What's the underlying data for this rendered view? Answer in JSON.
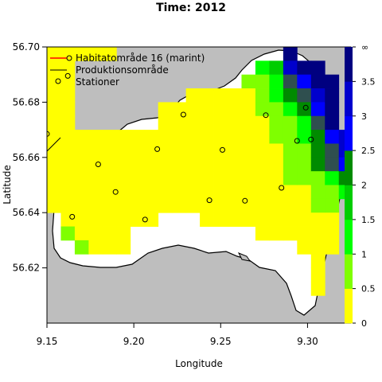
{
  "title": "Time: 2012",
  "xlabel": "Longitude",
  "ylabel": "Latitude",
  "x_ticks": [
    "9.15",
    "9.20",
    "9.25",
    "9.30"
  ],
  "y_ticks": [
    "56.62",
    "56.64",
    "56.66",
    "56.68",
    "56.70"
  ],
  "legend": {
    "habitat": "Habitatområde 16 (marint)",
    "production": "Produktionsområde",
    "stations": "Stationer"
  },
  "colors": {
    "land": "#bebebe",
    "water": "#ffffff",
    "habitat_line": "#ff0000",
    "production_line": "#000000",
    "station": "#000000"
  },
  "colorbar": {
    "labels": [
      "0",
      "0.5",
      "1",
      "1.5",
      "2",
      "2.5",
      "3",
      "3.5",
      "∞"
    ],
    "colors": [
      "#ffff00",
      "#7fff00",
      "#00ff00",
      "#00cd00",
      "#008b00",
      "#2f4f4f",
      "#0000ff",
      "#0000cd",
      "#000080"
    ]
  },
  "chart_data": {
    "type": "heatmap",
    "title": "Time: 2012",
    "xlabel": "Longitude",
    "ylabel": "Latitude",
    "xlim": [
      9.15,
      9.325
    ],
    "ylim": [
      56.6,
      56.7
    ],
    "cell_size": [
      0.008,
      0.005
    ],
    "value_classes": [
      "0-0.5",
      "0.5-1",
      "1-1.5",
      "1.5-2",
      "2-2.5",
      "2.5-3",
      "3-3.5",
      "3.5-∞"
    ],
    "cells": [
      [
        9.15,
        56.695,
        0
      ],
      [
        9.158,
        56.695,
        0
      ],
      [
        9.166,
        56.695,
        0
      ],
      [
        9.174,
        56.695,
        0
      ],
      [
        9.182,
        56.695,
        0
      ],
      [
        9.15,
        56.69,
        0
      ],
      [
        9.158,
        56.69,
        0
      ],
      [
        9.15,
        56.685,
        0
      ],
      [
        9.158,
        56.685,
        0
      ],
      [
        9.15,
        56.68,
        0
      ],
      [
        9.158,
        56.68,
        0
      ],
      [
        9.15,
        56.675,
        0
      ],
      [
        9.158,
        56.675,
        0
      ],
      [
        9.15,
        56.67,
        0
      ],
      [
        9.158,
        56.67,
        0
      ],
      [
        9.15,
        56.665,
        0
      ],
      [
        9.158,
        56.665,
        0
      ],
      [
        9.166,
        56.665,
        0
      ],
      [
        9.174,
        56.665,
        0
      ],
      [
        9.182,
        56.665,
        0
      ],
      [
        9.19,
        56.665,
        0
      ],
      [
        9.15,
        56.66,
        0
      ],
      [
        9.158,
        56.66,
        0
      ],
      [
        9.166,
        56.66,
        0
      ],
      [
        9.174,
        56.66,
        0
      ],
      [
        9.182,
        56.66,
        0
      ],
      [
        9.19,
        56.66,
        0
      ],
      [
        9.15,
        56.655,
        0
      ],
      [
        9.158,
        56.655,
        0
      ],
      [
        9.166,
        56.655,
        0
      ],
      [
        9.174,
        56.655,
        0
      ],
      [
        9.182,
        56.655,
        0
      ],
      [
        9.19,
        56.655,
        0
      ],
      [
        9.15,
        56.65,
        0
      ],
      [
        9.158,
        56.65,
        0
      ],
      [
        9.166,
        56.65,
        0
      ],
      [
        9.174,
        56.65,
        0
      ],
      [
        9.182,
        56.65,
        0
      ],
      [
        9.19,
        56.65,
        0
      ],
      [
        9.15,
        56.645,
        0
      ],
      [
        9.158,
        56.645,
        0
      ],
      [
        9.166,
        56.645,
        0
      ],
      [
        9.174,
        56.645,
        0
      ],
      [
        9.182,
        56.645,
        0
      ],
      [
        9.19,
        56.645,
        0
      ],
      [
        9.15,
        56.64,
        0
      ],
      [
        9.158,
        56.64,
        0
      ],
      [
        9.166,
        56.64,
        0
      ],
      [
        9.174,
        56.64,
        0
      ],
      [
        9.182,
        56.64,
        0
      ],
      [
        9.19,
        56.64,
        0
      ],
      [
        9.158,
        56.635,
        0
      ],
      [
        9.166,
        56.635,
        0
      ],
      [
        9.174,
        56.635,
        0
      ],
      [
        9.182,
        56.635,
        0
      ],
      [
        9.19,
        56.635,
        0
      ],
      [
        9.158,
        56.63,
        1
      ],
      [
        9.166,
        56.63,
        0
      ],
      [
        9.174,
        56.63,
        0
      ],
      [
        9.182,
        56.63,
        0
      ],
      [
        9.19,
        56.63,
        0
      ],
      [
        9.166,
        56.625,
        1
      ],
      [
        9.174,
        56.625,
        0
      ],
      [
        9.182,
        56.625,
        0
      ],
      [
        9.19,
        56.625,
        0
      ],
      [
        9.198,
        56.665,
        0
      ],
      [
        9.198,
        56.66,
        0
      ],
      [
        9.198,
        56.655,
        0
      ],
      [
        9.198,
        56.65,
        0
      ],
      [
        9.198,
        56.645,
        0
      ],
      [
        9.198,
        56.64,
        0
      ],
      [
        9.198,
        56.635,
        0
      ],
      [
        9.206,
        56.665,
        0
      ],
      [
        9.206,
        56.66,
        0
      ],
      [
        9.206,
        56.655,
        0
      ],
      [
        9.206,
        56.65,
        0
      ],
      [
        9.206,
        56.645,
        0
      ],
      [
        9.206,
        56.64,
        0
      ],
      [
        9.206,
        56.635,
        0
      ],
      [
        9.214,
        56.675,
        0
      ],
      [
        9.214,
        56.67,
        0
      ],
      [
        9.214,
        56.665,
        0
      ],
      [
        9.214,
        56.66,
        0
      ],
      [
        9.214,
        56.655,
        0
      ],
      [
        9.214,
        56.65,
        0
      ],
      [
        9.214,
        56.645,
        0
      ],
      [
        9.214,
        56.64,
        0
      ],
      [
        9.222,
        56.675,
        0
      ],
      [
        9.222,
        56.67,
        0
      ],
      [
        9.222,
        56.665,
        0
      ],
      [
        9.222,
        56.66,
        0
      ],
      [
        9.222,
        56.655,
        0
      ],
      [
        9.222,
        56.65,
        0
      ],
      [
        9.222,
        56.645,
        0
      ],
      [
        9.222,
        56.64,
        0
      ],
      [
        9.23,
        56.68,
        0
      ],
      [
        9.23,
        56.675,
        0
      ],
      [
        9.23,
        56.67,
        0
      ],
      [
        9.23,
        56.665,
        0
      ],
      [
        9.23,
        56.66,
        0
      ],
      [
        9.23,
        56.655,
        0
      ],
      [
        9.23,
        56.65,
        0
      ],
      [
        9.23,
        56.645,
        0
      ],
      [
        9.23,
        56.64,
        0
      ],
      [
        9.238,
        56.68,
        0
      ],
      [
        9.238,
        56.675,
        0
      ],
      [
        9.238,
        56.67,
        0
      ],
      [
        9.238,
        56.665,
        0
      ],
      [
        9.238,
        56.66,
        0
      ],
      [
        9.238,
        56.655,
        0
      ],
      [
        9.238,
        56.65,
        0
      ],
      [
        9.238,
        56.645,
        0
      ],
      [
        9.238,
        56.64,
        0
      ],
      [
        9.238,
        56.635,
        0
      ],
      [
        9.246,
        56.68,
        0
      ],
      [
        9.246,
        56.675,
        0
      ],
      [
        9.246,
        56.67,
        0
      ],
      [
        9.246,
        56.665,
        0
      ],
      [
        9.246,
        56.66,
        0
      ],
      [
        9.246,
        56.655,
        0
      ],
      [
        9.246,
        56.65,
        0
      ],
      [
        9.246,
        56.645,
        0
      ],
      [
        9.246,
        56.64,
        0
      ],
      [
        9.246,
        56.635,
        0
      ],
      [
        9.254,
        56.68,
        0
      ],
      [
        9.254,
        56.675,
        0
      ],
      [
        9.254,
        56.67,
        0
      ],
      [
        9.254,
        56.665,
        0
      ],
      [
        9.254,
        56.66,
        0
      ],
      [
        9.254,
        56.655,
        0
      ],
      [
        9.254,
        56.65,
        0
      ],
      [
        9.254,
        56.645,
        0
      ],
      [
        9.254,
        56.64,
        0
      ],
      [
        9.254,
        56.635,
        0
      ],
      [
        9.262,
        56.685,
        1
      ],
      [
        9.262,
        56.68,
        0
      ],
      [
        9.262,
        56.675,
        0
      ],
      [
        9.262,
        56.67,
        0
      ],
      [
        9.262,
        56.665,
        0
      ],
      [
        9.262,
        56.66,
        0
      ],
      [
        9.262,
        56.655,
        0
      ],
      [
        9.262,
        56.65,
        0
      ],
      [
        9.262,
        56.645,
        0
      ],
      [
        9.262,
        56.64,
        0
      ],
      [
        9.262,
        56.635,
        0
      ],
      [
        9.27,
        56.69,
        2
      ],
      [
        9.27,
        56.685,
        1
      ],
      [
        9.27,
        56.68,
        1
      ],
      [
        9.27,
        56.675,
        1
      ],
      [
        9.27,
        56.67,
        0
      ],
      [
        9.27,
        56.665,
        0
      ],
      [
        9.27,
        56.66,
        0
      ],
      [
        9.27,
        56.655,
        0
      ],
      [
        9.27,
        56.65,
        0
      ],
      [
        9.27,
        56.645,
        0
      ],
      [
        9.27,
        56.64,
        0
      ],
      [
        9.27,
        56.635,
        0
      ],
      [
        9.27,
        56.63,
        0
      ],
      [
        9.278,
        56.69,
        3
      ],
      [
        9.278,
        56.685,
        2
      ],
      [
        9.278,
        56.68,
        2
      ],
      [
        9.278,
        56.675,
        1
      ],
      [
        9.278,
        56.67,
        1
      ],
      [
        9.278,
        56.665,
        1
      ],
      [
        9.278,
        56.66,
        0
      ],
      [
        9.278,
        56.655,
        0
      ],
      [
        9.278,
        56.65,
        0
      ],
      [
        9.278,
        56.645,
        0
      ],
      [
        9.278,
        56.64,
        0
      ],
      [
        9.278,
        56.635,
        0
      ],
      [
        9.278,
        56.63,
        0
      ],
      [
        9.286,
        56.695,
        8
      ],
      [
        9.286,
        56.69,
        7
      ],
      [
        9.286,
        56.685,
        5
      ],
      [
        9.286,
        56.68,
        4
      ],
      [
        9.286,
        56.675,
        2
      ],
      [
        9.286,
        56.67,
        1
      ],
      [
        9.286,
        56.665,
        1
      ],
      [
        9.286,
        56.66,
        1
      ],
      [
        9.286,
        56.655,
        1
      ],
      [
        9.286,
        56.65,
        1
      ],
      [
        9.286,
        56.645,
        0
      ],
      [
        9.286,
        56.64,
        0
      ],
      [
        9.286,
        56.635,
        0
      ],
      [
        9.286,
        56.63,
        0
      ],
      [
        9.294,
        56.69,
        8
      ],
      [
        9.294,
        56.685,
        6
      ],
      [
        9.294,
        56.68,
        5
      ],
      [
        9.294,
        56.675,
        4
      ],
      [
        9.294,
        56.67,
        2
      ],
      [
        9.294,
        56.665,
        2
      ],
      [
        9.294,
        56.66,
        1
      ],
      [
        9.294,
        56.655,
        1
      ],
      [
        9.294,
        56.65,
        1
      ],
      [
        9.294,
        56.645,
        0
      ],
      [
        9.294,
        56.64,
        0
      ],
      [
        9.294,
        56.635,
        0
      ],
      [
        9.294,
        56.63,
        0
      ],
      [
        9.294,
        56.625,
        0
      ],
      [
        9.302,
        56.69,
        8
      ],
      [
        9.302,
        56.685,
        8
      ],
      [
        9.302,
        56.68,
        7
      ],
      [
        9.302,
        56.675,
        6
      ],
      [
        9.302,
        56.67,
        5
      ],
      [
        9.302,
        56.665,
        4
      ],
      [
        9.302,
        56.66,
        4
      ],
      [
        9.302,
        56.655,
        4
      ],
      [
        9.302,
        56.65,
        1
      ],
      [
        9.302,
        56.645,
        1
      ],
      [
        9.302,
        56.64,
        1
      ],
      [
        9.302,
        56.635,
        0
      ],
      [
        9.302,
        56.63,
        0
      ],
      [
        9.302,
        56.625,
        0
      ],
      [
        9.302,
        56.62,
        0
      ],
      [
        9.302,
        56.615,
        0
      ],
      [
        9.302,
        56.61,
        0
      ],
      [
        9.31,
        56.685,
        8
      ],
      [
        9.31,
        56.68,
        8
      ],
      [
        9.31,
        56.675,
        8
      ],
      [
        9.31,
        56.67,
        8
      ],
      [
        9.31,
        56.665,
        6
      ],
      [
        9.31,
        56.66,
        5
      ],
      [
        9.31,
        56.655,
        5
      ],
      [
        9.31,
        56.65,
        2
      ],
      [
        9.31,
        56.645,
        1
      ],
      [
        9.31,
        56.64,
        1
      ],
      [
        9.31,
        56.635,
        0
      ],
      [
        9.31,
        56.63,
        0
      ],
      [
        9.31,
        56.625,
        0
      ],
      [
        9.318,
        56.665,
        7
      ],
      [
        9.318,
        56.66,
        7
      ],
      [
        9.318,
        56.655,
        6
      ],
      [
        9.318,
        56.65,
        4
      ],
      [
        9.318,
        56.645,
        2
      ]
    ],
    "stations": [
      [
        9.15,
        56.6685
      ],
      [
        9.162,
        56.6895
      ],
      [
        9.1645,
        56.6385
      ],
      [
        9.1795,
        56.6575
      ],
      [
        9.1895,
        56.6475
      ],
      [
        9.2065,
        56.6375
      ],
      [
        9.2135,
        56.663
      ],
      [
        9.2285,
        56.6755
      ],
      [
        9.2435,
        56.6445
      ],
      [
        9.251,
        56.6627
      ],
      [
        9.264,
        56.6443
      ],
      [
        9.276,
        56.6753
      ],
      [
        9.285,
        56.649
      ],
      [
        9.294,
        56.666
      ],
      [
        9.299,
        56.678
      ],
      [
        9.302,
        56.6665
      ]
    ]
  }
}
